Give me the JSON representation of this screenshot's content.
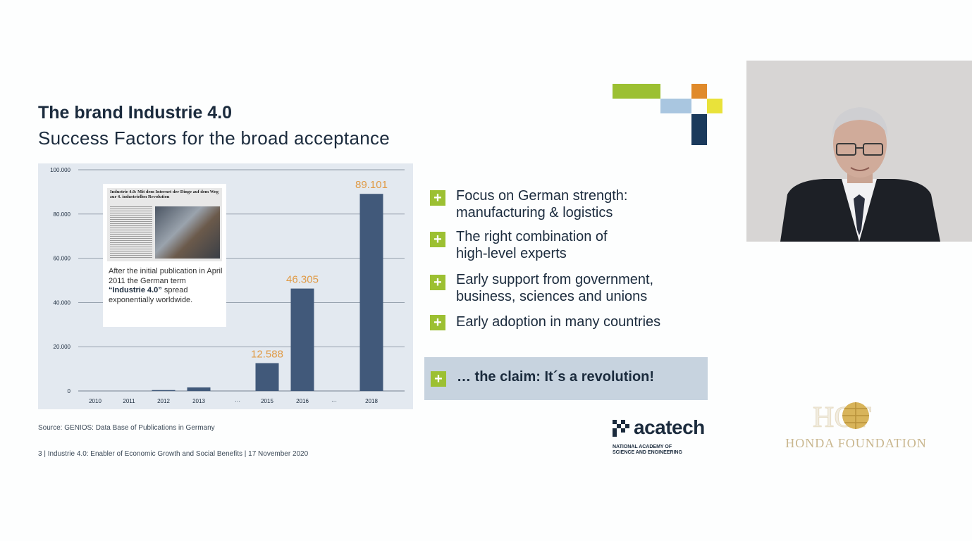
{
  "slide": {
    "title": "The brand Industrie 4.0",
    "subtitle": "Success Factors for the broad acceptance",
    "source": "Source: GENIOS: Data Base of Publications in Germany",
    "footer": "3 | Industrie 4.0: Enabler of Economic Growth and Social Benefits | 17 November 2020"
  },
  "callout": {
    "newspaper_headline": "Industrie 4.0: Mit dem Internet der Dinge auf dem Weg zur 4. industriellen Revolution",
    "text_before": "After the initial publication in April 2011 the German term",
    "text_bold": "“Industrie 4.0”",
    "text_after": "spread exponentially worldwide."
  },
  "bullets": [
    {
      "line1": "Focus on German strength:",
      "line2": "manufacturing & logistics"
    },
    {
      "line1": "The right combination of",
      "line2": "high-level experts"
    },
    {
      "line1": "Early support from government,",
      "line2": "business, sciences and unions"
    },
    {
      "line1": "Early adoption in many countries",
      "line2": ""
    }
  ],
  "claim": "… the claim: It´s a revolution!",
  "plus_glyph": "+",
  "logos": {
    "acatech_word": "acatech",
    "acatech_sub1": "NATIONAL ACADEMY OF",
    "acatech_sub2": "SCIENCE AND ENGINEERING",
    "honda_text": "HONDA FOUNDATION",
    "honda_mark": "HOF"
  },
  "colors": {
    "bar": "#41597a",
    "value_label": "#e09a45",
    "plus": "#9cc032",
    "title": "#1b2b3d"
  },
  "chart_data": {
    "type": "bar",
    "categories": [
      "2010",
      "2011",
      "2012",
      "2013",
      "...",
      "2015",
      "2016",
      "...",
      "2018"
    ],
    "values": [
      0,
      0,
      400,
      1600,
      null,
      12588,
      46305,
      null,
      89101
    ],
    "value_labels": [
      "",
      "",
      "",
      "",
      "",
      "12.588",
      "46.305",
      "",
      "89.101"
    ],
    "ylim": [
      0,
      100000
    ],
    "yticks": [
      0,
      20000,
      40000,
      60000,
      80000,
      100000
    ],
    "ytick_labels": [
      "0",
      "20.000",
      "40.000",
      "60.000",
      "80.000",
      "100.000"
    ],
    "grid": true,
    "legend": "none"
  }
}
